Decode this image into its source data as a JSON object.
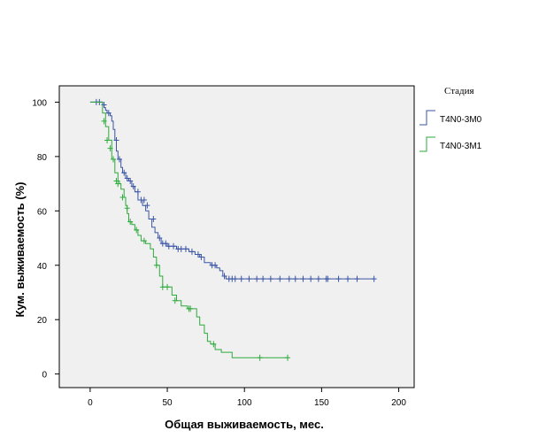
{
  "chart_data": {
    "type": "line",
    "subtype": "kaplan-meier step survival curve",
    "title": "",
    "xlabel": "Общая выживаемость, мес.",
    "ylabel": "Кум. выживаемость (%)",
    "xlim": [
      -20,
      210
    ],
    "ylim": [
      -5,
      106
    ],
    "xticks": [
      0,
      50,
      100,
      150,
      200
    ],
    "yticks": [
      0,
      20,
      40,
      60,
      80,
      100
    ],
    "grid": false,
    "legend": {
      "title": "Стадия",
      "placement": "right-top"
    },
    "series": [
      {
        "name": "T4N0-3M0",
        "color": "#3a55a4",
        "steps": [
          [
            0,
            100
          ],
          [
            7,
            100
          ],
          [
            8,
            99
          ],
          [
            9,
            98
          ],
          [
            10,
            97
          ],
          [
            11,
            96
          ],
          [
            13,
            95
          ],
          [
            14,
            93
          ],
          [
            15,
            90
          ],
          [
            16,
            86
          ],
          [
            17,
            82
          ],
          [
            18,
            79
          ],
          [
            20,
            76
          ],
          [
            21,
            74
          ],
          [
            23,
            72
          ],
          [
            25,
            71
          ],
          [
            27,
            69
          ],
          [
            29,
            67
          ],
          [
            31,
            64
          ],
          [
            34,
            62
          ],
          [
            36,
            60
          ],
          [
            38,
            57
          ],
          [
            40,
            54
          ],
          [
            42,
            52
          ],
          [
            44,
            50
          ],
          [
            46,
            48
          ],
          [
            50,
            47
          ],
          [
            52,
            47
          ],
          [
            56,
            46
          ],
          [
            60,
            46
          ],
          [
            64,
            45
          ],
          [
            68,
            44
          ],
          [
            71,
            43
          ],
          [
            74,
            41
          ],
          [
            78,
            40
          ],
          [
            82,
            39
          ],
          [
            84,
            38
          ],
          [
            86,
            36
          ],
          [
            88,
            35
          ],
          [
            184,
            35
          ]
        ],
        "censored": [
          [
            4,
            100
          ],
          [
            6,
            100
          ],
          [
            9,
            99
          ],
          [
            12,
            96
          ],
          [
            17,
            86
          ],
          [
            19,
            79
          ],
          [
            22,
            74
          ],
          [
            24,
            72
          ],
          [
            26,
            71
          ],
          [
            28,
            69
          ],
          [
            31,
            67
          ],
          [
            33,
            64
          ],
          [
            35,
            64
          ],
          [
            37,
            62
          ],
          [
            41,
            57
          ],
          [
            45,
            50
          ],
          [
            47,
            48
          ],
          [
            49,
            48
          ],
          [
            51,
            47
          ],
          [
            54,
            47
          ],
          [
            57,
            46
          ],
          [
            59,
            46
          ],
          [
            62,
            46
          ],
          [
            66,
            45
          ],
          [
            70,
            44
          ],
          [
            72,
            43
          ],
          [
            79,
            40
          ],
          [
            81,
            40
          ],
          [
            87,
            36
          ],
          [
            90,
            35
          ],
          [
            92,
            35
          ],
          [
            94,
            35
          ],
          [
            98,
            35
          ],
          [
            103,
            35
          ],
          [
            108,
            35
          ],
          [
            112,
            35
          ],
          [
            117,
            35
          ],
          [
            123,
            35
          ],
          [
            129,
            35
          ],
          [
            133,
            35
          ],
          [
            138,
            35
          ],
          [
            143,
            35
          ],
          [
            148,
            35
          ],
          [
            153,
            35
          ],
          [
            154,
            35
          ],
          [
            161,
            35
          ],
          [
            167,
            35
          ],
          [
            173,
            35
          ],
          [
            184,
            35
          ]
        ]
      },
      {
        "name": "T4N0-3M1",
        "color": "#2eaa3c",
        "steps": [
          [
            0,
            100
          ],
          [
            6,
            100
          ],
          [
            8,
            96
          ],
          [
            10,
            91
          ],
          [
            12,
            86
          ],
          [
            14,
            79
          ],
          [
            16,
            74
          ],
          [
            18,
            71
          ],
          [
            19,
            70
          ],
          [
            20,
            68
          ],
          [
            22,
            65
          ],
          [
            23,
            62
          ],
          [
            24,
            59
          ],
          [
            25,
            56
          ],
          [
            27,
            55
          ],
          [
            29,
            53
          ],
          [
            31,
            51
          ],
          [
            33,
            49
          ],
          [
            36,
            48
          ],
          [
            39,
            46
          ],
          [
            41,
            43
          ],
          [
            43,
            40
          ],
          [
            45,
            36
          ],
          [
            47,
            32
          ],
          [
            49,
            32
          ],
          [
            53,
            29
          ],
          [
            56,
            27
          ],
          [
            59,
            25
          ],
          [
            63,
            24
          ],
          [
            66,
            24
          ],
          [
            69,
            21
          ],
          [
            71,
            18
          ],
          [
            74,
            15
          ],
          [
            76,
            12
          ],
          [
            78,
            11
          ],
          [
            81,
            9
          ],
          [
            85,
            8
          ],
          [
            92,
            6
          ],
          [
            128,
            6
          ]
        ],
        "censored": [
          [
            9,
            93
          ],
          [
            11,
            86
          ],
          [
            13,
            83
          ],
          [
            15,
            79
          ],
          [
            17,
            71
          ],
          [
            18,
            70
          ],
          [
            21,
            65
          ],
          [
            24,
            61
          ],
          [
            26,
            56
          ],
          [
            30,
            53
          ],
          [
            35,
            49
          ],
          [
            43,
            40
          ],
          [
            47,
            32
          ],
          [
            50,
            32
          ],
          [
            55,
            27
          ],
          [
            64,
            24
          ],
          [
            65,
            24
          ],
          [
            80,
            11
          ],
          [
            110,
            6
          ],
          [
            128,
            6
          ]
        ]
      }
    ]
  }
}
